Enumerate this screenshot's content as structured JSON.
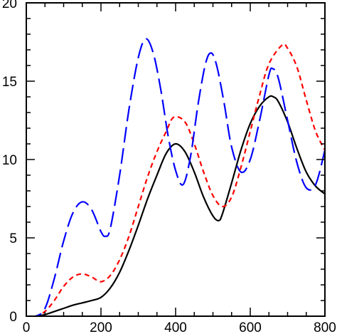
{
  "chart_data": {
    "type": "line",
    "title": "",
    "xlabel": "",
    "ylabel": "",
    "xlim": [
      0,
      800
    ],
    "ylim": [
      0,
      20
    ],
    "grid": false,
    "x_ticks": [
      0,
      200,
      400,
      600,
      800
    ],
    "x_tick_labels": [
      "0",
      "200",
      "400",
      "600",
      "800"
    ],
    "y_ticks": [
      0,
      5,
      10,
      15,
      20
    ],
    "y_tick_labels": [
      "0",
      "5",
      "10",
      "15",
      "20"
    ],
    "series": [
      {
        "style": "solid",
        "color": "#000000",
        "x": [
          0,
          25,
          50,
          75,
          100,
          125,
          150,
          175,
          200,
          225,
          250,
          275,
          300,
          325,
          350,
          375,
          400,
          425,
          450,
          475,
          500,
          515,
          525,
          550,
          575,
          600,
          625,
          650,
          662,
          675,
          700,
          725,
          750,
          775,
          800
        ],
        "y": [
          0,
          0,
          0.1,
          0.3,
          0.5,
          0.7,
          0.85,
          1.0,
          1.2,
          1.8,
          2.8,
          4.2,
          5.8,
          7.5,
          9.0,
          10.4,
          11.0,
          10.5,
          9.2,
          7.6,
          6.4,
          6.1,
          6.5,
          8.5,
          10.6,
          12.3,
          13.4,
          14.0,
          14.0,
          13.7,
          12.4,
          10.7,
          9.2,
          8.3,
          7.8
        ]
      },
      {
        "style": "dashed",
        "color": "#ff0000",
        "x": [
          0,
          25,
          50,
          75,
          100,
          125,
          150,
          175,
          200,
          225,
          250,
          275,
          300,
          325,
          350,
          375,
          395,
          425,
          450,
          475,
          500,
          525,
          550,
          575,
          600,
          625,
          650,
          685,
          700,
          725,
          750,
          775,
          800
        ],
        "y": [
          0,
          0,
          0.3,
          1.0,
          1.9,
          2.5,
          2.7,
          2.5,
          2.2,
          2.6,
          3.6,
          5.1,
          7.0,
          8.9,
          10.5,
          11.8,
          12.7,
          12.4,
          11.0,
          9.2,
          7.7,
          7.0,
          7.6,
          9.5,
          11.8,
          14.1,
          16.1,
          17.3,
          17.1,
          15.9,
          13.8,
          11.8,
          10.6
        ]
      },
      {
        "style": "long-dashed",
        "color": "#0000ff",
        "x": [
          0,
          25,
          50,
          75,
          100,
          125,
          150,
          175,
          200,
          212,
          225,
          250,
          275,
          300,
          320,
          340,
          360,
          380,
          400,
          420,
          440,
          460,
          480,
          495,
          510,
          530,
          550,
          575,
          600,
          625,
          650,
          660,
          675,
          700,
          725,
          750,
          775,
          800
        ],
        "y": [
          0,
          0,
          0.5,
          2.4,
          4.8,
          6.6,
          7.3,
          6.8,
          5.4,
          5.1,
          5.6,
          9.0,
          13.2,
          16.5,
          17.7,
          16.8,
          14.5,
          11.5,
          9.3,
          8.4,
          10.2,
          13.5,
          16.1,
          16.8,
          16.0,
          13.6,
          10.8,
          9.2,
          10.0,
          12.5,
          15.4,
          15.8,
          15.2,
          12.5,
          9.8,
          8.2,
          8.4,
          10.6
        ]
      }
    ]
  }
}
